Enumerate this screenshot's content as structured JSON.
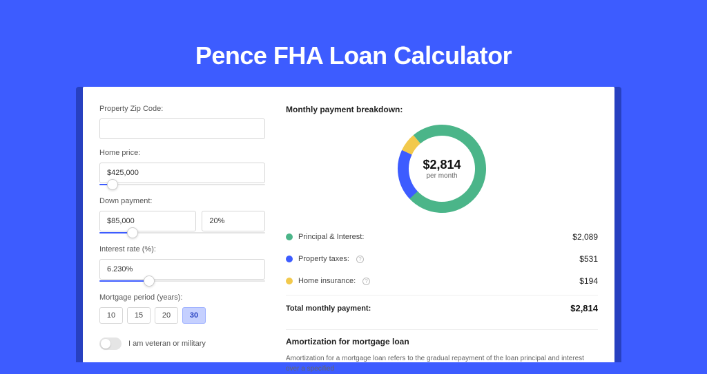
{
  "page": {
    "title": "Pence FHA Loan Calculator",
    "background_color": "#3d5cff",
    "panel_accent": "#2740c0"
  },
  "form": {
    "zip": {
      "label": "Property Zip Code:",
      "value": ""
    },
    "home_price": {
      "label": "Home price:",
      "value": "$425,000",
      "slider_pct": 8
    },
    "down_payment": {
      "label": "Down payment:",
      "amount": "$85,000",
      "percent": "20%",
      "slider_pct": 20
    },
    "interest_rate": {
      "label": "Interest rate (%):",
      "value": "6.230%",
      "slider_pct": 30
    },
    "mortgage_period": {
      "label": "Mortgage period (years):",
      "options": [
        "10",
        "15",
        "20",
        "30"
      ],
      "selected": "30"
    },
    "veteran": {
      "label": "I am veteran or military",
      "checked": false
    }
  },
  "breakdown": {
    "title": "Monthly payment breakdown:",
    "total_amount": "$2,814",
    "total_sub": "per month",
    "items": [
      {
        "label": "Principal & Interest:",
        "value": "$2,089",
        "color": "#4bb589",
        "pct": 74.2,
        "info": false
      },
      {
        "label": "Property taxes:",
        "value": "$531",
        "color": "#3d5cff",
        "pct": 18.9,
        "info": true
      },
      {
        "label": "Home insurance:",
        "value": "$194",
        "color": "#f2c94c",
        "pct": 6.9,
        "info": true
      }
    ],
    "total_label": "Total monthly payment:",
    "total_value": "$2,814",
    "donut": {
      "stroke_width": 16,
      "radius": 56,
      "colors": {
        "principal": "#4bb589",
        "taxes": "#3d5cff",
        "insurance": "#f2c94c"
      }
    }
  },
  "amortization": {
    "title": "Amortization for mortgage loan",
    "text": "Amortization for a mortgage loan refers to the gradual repayment of the loan principal and interest over a specified"
  }
}
